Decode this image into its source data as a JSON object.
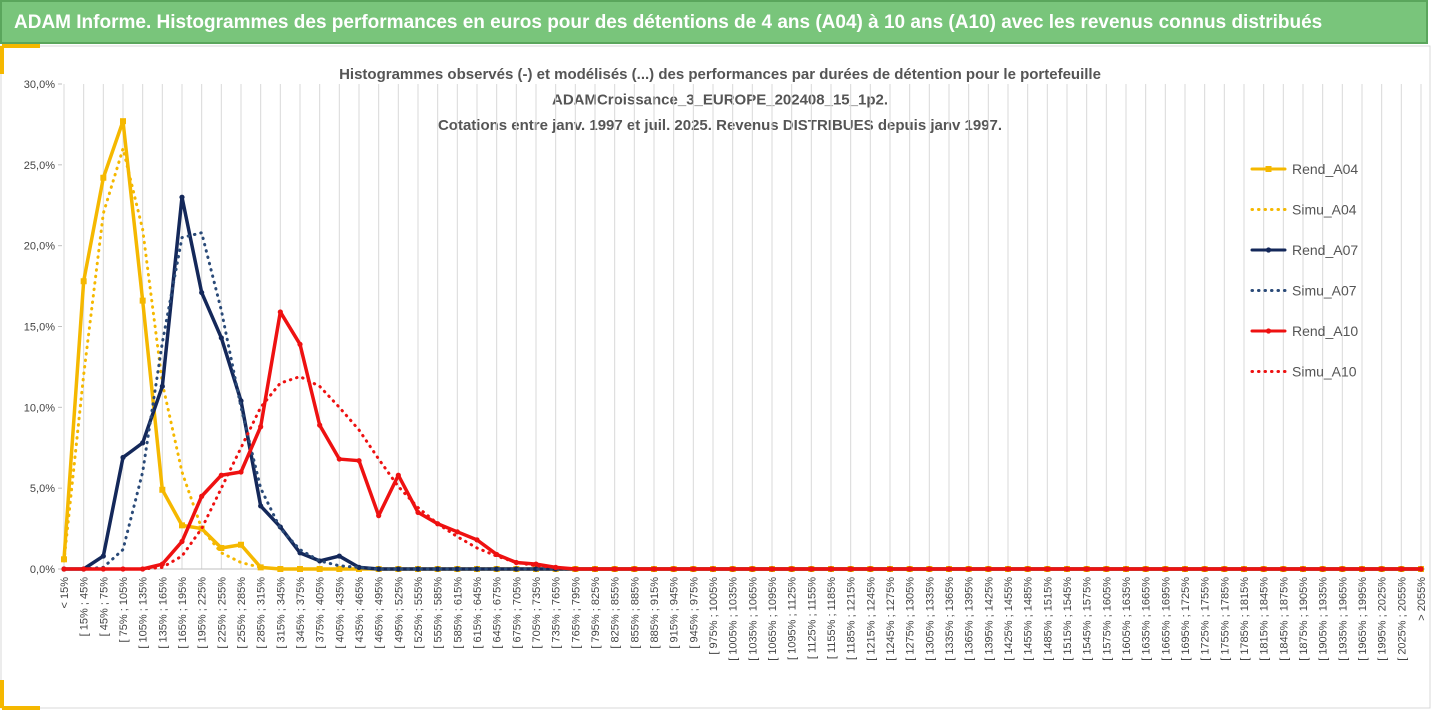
{
  "header": {
    "title": "ADAM Informe. Histogrammes des performances en euros pour des détentions de 4 ans (A04) à 10 ans (A10) avec les revenus connus distribués"
  },
  "chart_data": {
    "type": "line",
    "title_lines": [
      "Histogrammes observés (-) et modélisés (...) des performances par durées de détention pour le portefeuille",
      "ADAMCroissance_3_EUROPE_202408_15_1p2.",
      "Cotations entre janv. 1997 et juil. 2025. Revenus DISTRIBUES depuis janv 1997."
    ],
    "categories": [
      "< 15%",
      "[ 15% ; 45%",
      "[ 45% ; 75%",
      "[ 75% ; 105%",
      "[ 105% ; 135%",
      "[ 135% ; 165%",
      "[ 165% ; 195%",
      "[ 195% ; 225%",
      "[ 225% ; 255%",
      "[ 255% ; 285%",
      "[ 285% ; 315%",
      "[ 315% ; 345%",
      "[ 345% ; 375%",
      "[ 375% ; 405%",
      "[ 405% ; 435%",
      "[ 435% ; 465%",
      "[ 465% ; 495%",
      "[ 495% ; 525%",
      "[ 525% ; 555%",
      "[ 555% ; 585%",
      "[ 585% ; 615%",
      "[ 615% ; 645%",
      "[ 645% ; 675%",
      "[ 675% ; 705%",
      "[ 705% ; 735%",
      "[ 735% ; 765%",
      "[ 765% ; 795%",
      "[ 795% ; 825%",
      "[ 825% ; 855%",
      "[ 855% ; 885%",
      "[ 885% ; 915%",
      "[ 915% ; 945%",
      "[ 945% ; 975%",
      "[ 975% ; 1005%",
      "[ 1005% ; 1035%",
      "[ 1035% ; 1065%",
      "[ 1065% ; 1095%",
      "[ 1095% ; 1125%",
      "[ 1125% ; 1155%",
      "[ 1155% ; 1185%",
      "[ 1185% ; 1215%",
      "[ 1215% ; 1245%",
      "[ 1245% ; 1275%",
      "[ 1275% ; 1305%",
      "[ 1305% ; 1335%",
      "[ 1335% ; 1365%",
      "[ 1365% ; 1395%",
      "[ 1395% ; 1425%",
      "[ 1425% ; 1455%",
      "[ 1455% ; 1485%",
      "[ 1485% ; 1515%",
      "[ 1515% ; 1545%",
      "[ 1545% ; 1575%",
      "[ 1575% ; 1605%",
      "[ 1605% ; 1635%",
      "[ 1635% ; 1665%",
      "[ 1665% ; 1695%",
      "[ 1695% ; 1725%",
      "[ 1725% ; 1755%",
      "[ 1755% ; 1785%",
      "[ 1785% ; 1815%",
      "[ 1815% ; 1845%",
      "[ 1845% ; 1875%",
      "[ 1875% ; 1905%",
      "[ 1905% ; 1935%",
      "[ 1935% ; 1965%",
      "[ 1965% ; 1995%",
      "[ 1995% ; 2025%",
      "[ 2025% ; 2055%",
      "> 2055%"
    ],
    "series": [
      {
        "name": "Rend_A04",
        "color": "#f5b800",
        "style": "solid",
        "marker": "square",
        "values": [
          0.6,
          17.8,
          24.2,
          27.7,
          16.6,
          4.9,
          2.7,
          2.5,
          1.3,
          1.5,
          0.1,
          0,
          0,
          0,
          0,
          0,
          0,
          0,
          0,
          0,
          0,
          0,
          0,
          0,
          0,
          0,
          0,
          0,
          0,
          0,
          0,
          0,
          0,
          0,
          0,
          0,
          0,
          0,
          0,
          0,
          0,
          0,
          0,
          0,
          0,
          0,
          0,
          0,
          0,
          0,
          0,
          0,
          0,
          0,
          0,
          0,
          0,
          0,
          0,
          0,
          0,
          0,
          0,
          0,
          0,
          0,
          0,
          0,
          0,
          0
        ]
      },
      {
        "name": "Simu_A04",
        "color": "#f5b800",
        "style": "dotted",
        "marker": "none",
        "values": [
          0.5,
          12,
          22,
          26,
          21,
          11.5,
          6,
          2.5,
          1,
          0.4,
          0.1,
          0,
          0,
          0,
          0,
          0,
          0,
          0,
          0,
          0,
          0,
          0,
          0,
          0,
          0,
          0,
          0,
          0,
          0,
          0,
          0,
          0,
          0,
          0,
          0,
          0,
          0,
          0,
          0,
          0,
          0,
          0,
          0,
          0,
          0,
          0,
          0,
          0,
          0,
          0,
          0,
          0,
          0,
          0,
          0,
          0,
          0,
          0,
          0,
          0,
          0,
          0,
          0,
          0,
          0,
          0,
          0,
          0,
          0,
          0
        ]
      },
      {
        "name": "Rend_A07",
        "color": "#14285a",
        "style": "solid",
        "marker": "circle",
        "values": [
          0,
          0,
          0.8,
          6.9,
          7.8,
          11.3,
          23,
          17.1,
          14.3,
          10.4,
          3.9,
          2.6,
          1,
          0.5,
          0.8,
          0.1,
          0,
          0,
          0,
          0,
          0,
          0,
          0,
          0,
          0,
          0,
          0,
          0,
          0,
          0,
          0,
          0,
          0,
          0,
          0,
          0,
          0,
          0,
          0,
          0,
          0,
          0,
          0,
          0,
          0,
          0,
          0,
          0,
          0,
          0,
          0,
          0,
          0,
          0,
          0,
          0,
          0,
          0,
          0,
          0,
          0,
          0,
          0,
          0,
          0,
          0,
          0,
          0,
          0,
          0
        ]
      },
      {
        "name": "Simu_A07",
        "color": "#2a4a78",
        "style": "dotted",
        "marker": "none",
        "values": [
          0,
          0,
          0.1,
          1.2,
          6,
          14,
          20.5,
          20.8,
          16,
          10,
          5,
          2.5,
          1.2,
          0.5,
          0.2,
          0.1,
          0,
          0,
          0,
          0,
          0,
          0,
          0,
          0,
          0,
          0,
          0,
          0,
          0,
          0,
          0,
          0,
          0,
          0,
          0,
          0,
          0,
          0,
          0,
          0,
          0,
          0,
          0,
          0,
          0,
          0,
          0,
          0,
          0,
          0,
          0,
          0,
          0,
          0,
          0,
          0,
          0,
          0,
          0,
          0,
          0,
          0,
          0,
          0,
          0,
          0,
          0,
          0,
          0,
          0
        ]
      },
      {
        "name": "Rend_A10",
        "color": "#ee1111",
        "style": "solid",
        "marker": "circle",
        "values": [
          0,
          0,
          0,
          0,
          0,
          0.3,
          1.7,
          4.5,
          5.8,
          6,
          8.8,
          15.9,
          13.9,
          8.9,
          6.8,
          6.7,
          3.3,
          5.8,
          3.5,
          2.8,
          2.3,
          1.8,
          0.9,
          0.4,
          0.3,
          0.1,
          0,
          0,
          0,
          0,
          0,
          0,
          0,
          0,
          0,
          0,
          0,
          0,
          0,
          0,
          0,
          0,
          0,
          0,
          0,
          0,
          0,
          0,
          0,
          0,
          0,
          0,
          0,
          0,
          0,
          0,
          0,
          0,
          0,
          0,
          0,
          0,
          0,
          0,
          0,
          0,
          0,
          0,
          0,
          0
        ]
      },
      {
        "name": "Simu_A10",
        "color": "#ee1111",
        "style": "dotted",
        "marker": "none",
        "values": [
          0,
          0,
          0,
          0,
          0,
          0.1,
          0.8,
          2.5,
          5,
          7.5,
          10,
          11.5,
          11.9,
          11.3,
          10,
          8.6,
          6.8,
          5.1,
          3.8,
          2.8,
          2,
          1.3,
          0.8,
          0.4,
          0.2,
          0.1,
          0,
          0,
          0,
          0,
          0,
          0,
          0,
          0,
          0,
          0,
          0,
          0,
          0,
          0,
          0,
          0,
          0,
          0,
          0,
          0,
          0,
          0,
          0,
          0,
          0,
          0,
          0,
          0,
          0,
          0,
          0,
          0,
          0,
          0,
          0,
          0,
          0,
          0,
          0,
          0,
          0,
          0,
          0,
          0
        ]
      }
    ],
    "ylim": [
      0,
      30
    ],
    "yticks": [
      {
        "value": 0,
        "label": "0,0%"
      },
      {
        "value": 5,
        "label": "5,0%"
      },
      {
        "value": 10,
        "label": "10,0%"
      },
      {
        "value": 15,
        "label": "15,0%"
      },
      {
        "value": 20,
        "label": "20,0%"
      },
      {
        "value": 25,
        "label": "25,0%"
      },
      {
        "value": 30,
        "label": "30,0%"
      }
    ],
    "grid": "vertical",
    "legend": "right"
  }
}
